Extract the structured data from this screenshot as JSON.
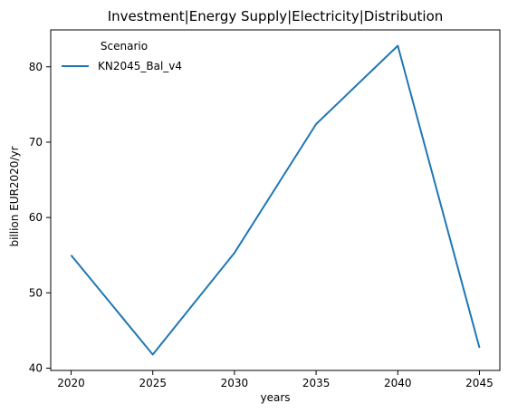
{
  "chart_data": {
    "type": "line",
    "title": "Investment|Energy Supply|Electricity|Distribution",
    "xlabel": "years",
    "ylabel": "billion EUR2020/yr",
    "x": [
      2020,
      2025,
      2030,
      2035,
      2040,
      2045
    ],
    "xlim": [
      2018.75,
      2046.25
    ],
    "ylim": [
      39.7,
      84.9
    ],
    "xticks": [
      2020,
      2025,
      2030,
      2035,
      2040,
      2045
    ],
    "yticks": [
      40,
      50,
      60,
      70,
      80
    ],
    "grid": false,
    "legend": {
      "title": "Scenario",
      "placement": "top-left"
    },
    "series": [
      {
        "name": "KN2045_Bal_v4",
        "color": "#1f77b4",
        "values": [
          55.0,
          41.8,
          55.3,
          72.4,
          82.8,
          42.7
        ]
      }
    ]
  }
}
